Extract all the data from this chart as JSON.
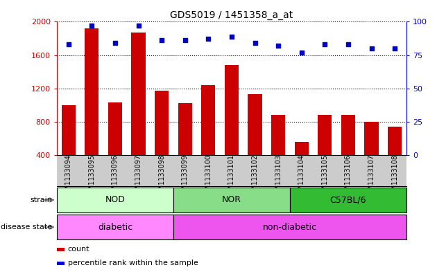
{
  "title": "GDS5019 / 1451358_a_at",
  "samples": [
    "GSM1133094",
    "GSM1133095",
    "GSM1133096",
    "GSM1133097",
    "GSM1133098",
    "GSM1133099",
    "GSM1133100",
    "GSM1133101",
    "GSM1133102",
    "GSM1133103",
    "GSM1133104",
    "GSM1133105",
    "GSM1133106",
    "GSM1133107",
    "GSM1133108"
  ],
  "counts": [
    1000,
    1920,
    1030,
    1870,
    1170,
    1020,
    1240,
    1480,
    1130,
    880,
    560,
    880,
    880,
    800,
    740
  ],
  "percentiles": [
    83,
    97,
    84,
    97,
    86,
    86,
    87,
    89,
    84,
    82,
    77,
    83,
    83,
    80,
    80
  ],
  "ylim_left": [
    400,
    2000
  ],
  "ylim_right": [
    0,
    100
  ],
  "yticks_left": [
    400,
    800,
    1200,
    1600,
    2000
  ],
  "yticks_right": [
    0,
    25,
    50,
    75,
    100
  ],
  "bar_color": "#cc0000",
  "dot_color": "#0000cc",
  "strain_groups": [
    {
      "label": "NOD",
      "start": 0,
      "end": 5,
      "color": "#ccffcc"
    },
    {
      "label": "NOR",
      "start": 5,
      "end": 10,
      "color": "#88dd88"
    },
    {
      "label": "C57BL/6",
      "start": 10,
      "end": 15,
      "color": "#33bb33"
    }
  ],
  "disease_groups": [
    {
      "label": "diabetic",
      "start": 0,
      "end": 5,
      "color": "#ff88ff"
    },
    {
      "label": "non-diabetic",
      "start": 5,
      "end": 15,
      "color": "#ee55ee"
    }
  ],
  "strain_label": "strain",
  "disease_label": "disease state",
  "legend_count": "count",
  "legend_pct": "percentile rank within the sample",
  "bg_color": "#ffffff",
  "tick_area_color": "#cccccc",
  "arrow_color": "#777777"
}
